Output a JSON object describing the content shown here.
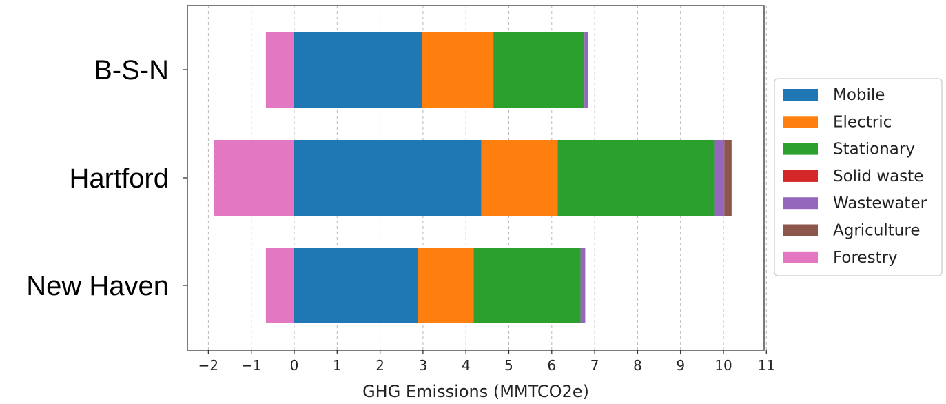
{
  "chart_data": {
    "type": "bar",
    "orientation": "horizontal",
    "stacked": true,
    "categories": [
      "B-S-N",
      "Hartford",
      "New Haven"
    ],
    "series": [
      {
        "name": "Mobile",
        "color": "#1f77b4",
        "values": [
          2.97,
          4.36,
          2.88
        ]
      },
      {
        "name": "Electric",
        "color": "#ff7f0e",
        "values": [
          1.67,
          1.78,
          1.3
        ]
      },
      {
        "name": "Stationary",
        "color": "#2ca02c",
        "values": [
          2.12,
          3.66,
          2.49
        ]
      },
      {
        "name": "Solid waste",
        "color": "#d62728",
        "values": [
          0.0,
          0.0,
          0.0
        ]
      },
      {
        "name": "Wastewater",
        "color": "#9467bd",
        "values": [
          0.09,
          0.22,
          0.11
        ]
      },
      {
        "name": "Agriculture",
        "color": "#8c564b",
        "values": [
          0.0,
          0.17,
          0.0
        ]
      },
      {
        "name": "Forestry",
        "color": "#e377c2",
        "values": [
          -0.66,
          -1.87,
          -0.66
        ]
      }
    ],
    "xlabel": "GHG Emissions (MMTCO2e)",
    "ylabel": "",
    "title": "",
    "xlim": [
      -2.5,
      11
    ],
    "xticks": [
      -2,
      -1,
      0,
      1,
      2,
      3,
      4,
      5,
      6,
      7,
      8,
      9,
      10,
      11
    ],
    "xtick_labels": [
      "−2",
      "−1",
      "0",
      "1",
      "2",
      "3",
      "4",
      "5",
      "6",
      "7",
      "8",
      "9",
      "10",
      "11"
    ],
    "grid": "x, dashed",
    "legend_position": "right"
  }
}
